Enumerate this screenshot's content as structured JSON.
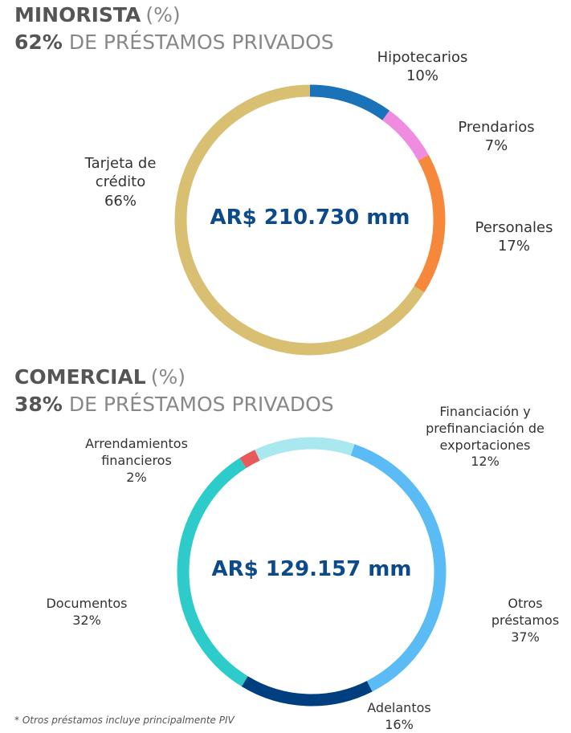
{
  "chart_data": [
    {
      "type": "donut",
      "title": "MINORISTA",
      "title_suffix": "(%)",
      "share": 62,
      "share_label": "62%",
      "subtitle": "DE PRÉSTAMOS PRIVADOS",
      "center_label": "AR$ 210.730 mm",
      "categories": [
        "Hipotecarios",
        "Prendarios",
        "Personales",
        "Tarjeta de crédito"
      ],
      "values": [
        10,
        7,
        17,
        66
      ],
      "value_labels": [
        "10%",
        "7%",
        "17%",
        "66%"
      ],
      "colors": [
        "#1a72b8",
        "#f08ce0",
        "#f5883a",
        "#d9bf72"
      ]
    },
    {
      "type": "donut",
      "title": "COMERCIAL",
      "title_suffix": "(%)",
      "share": 38,
      "share_label": "38%",
      "subtitle": "DE PRÉSTAMOS PRIVADOS",
      "center_label": "AR$ 129.157 mm",
      "categories": [
        "Financiación y prefinanciación de exportaciones",
        "Otros préstamos",
        "Adelantos",
        "Documentos",
        "Arrendamientos financieros"
      ],
      "values": [
        12,
        37,
        16,
        32,
        2
      ],
      "value_labels": [
        "12%",
        "37%",
        "16%",
        "32%",
        "2%"
      ],
      "colors": [
        "#a8e8ee",
        "#5bbcf5",
        "#003f7f",
        "#2ecbcb",
        "#e85a5a"
      ]
    }
  ],
  "footnote": "* Otros préstamos incluye principalmente PIV"
}
